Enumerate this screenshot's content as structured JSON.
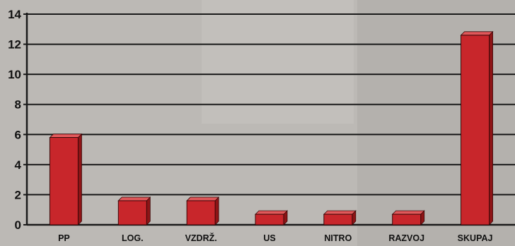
{
  "chart_data": {
    "type": "bar",
    "title": "",
    "xlabel": "",
    "ylabel": "",
    "categories": [
      "PP",
      "LOG.",
      "VZDRŽ.",
      "US",
      "NITRO",
      "RAZVOJ",
      "SKUPAJ"
    ],
    "values": [
      5.8,
      1.6,
      1.6,
      0.7,
      0.7,
      0.7,
      12.6
    ],
    "ylim": [
      0,
      14
    ],
    "yticks": [
      "0",
      "2",
      "4",
      "6",
      "8",
      "10",
      "12",
      "14"
    ],
    "grid": true,
    "legend": "none",
    "colors": {
      "bar": "#c8262b",
      "bar_side": "#8e1416",
      "bar_top": "#e0585a",
      "grid": "#1a1a1a",
      "background": "#b9b6b2"
    }
  }
}
